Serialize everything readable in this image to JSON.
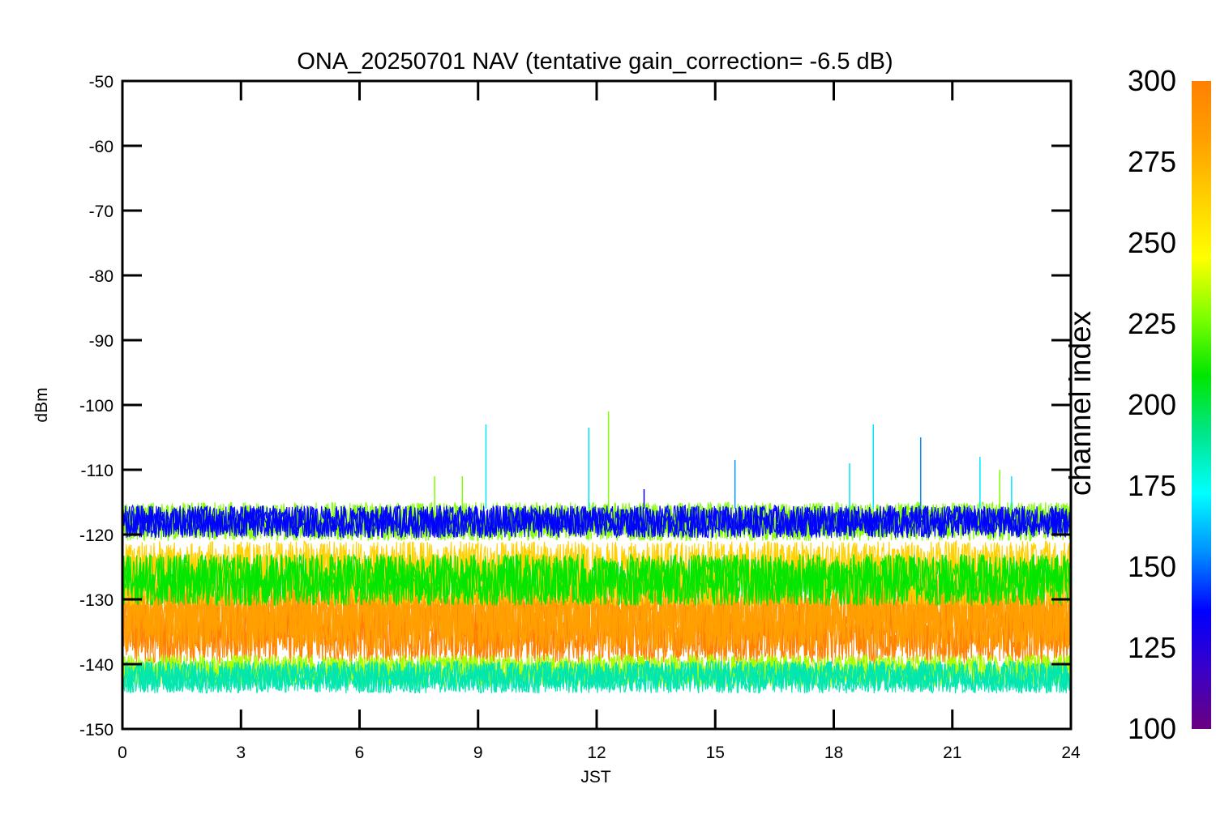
{
  "chart_data": {
    "type": "line",
    "title": "ONA_20250701 NAV (tentative gain_correction= -6.5 dB)",
    "xlabel": "JST",
    "ylabel": "dBm",
    "xlim": [
      0,
      24
    ],
    "ylim": [
      -150,
      -50
    ],
    "x_ticks": [
      "0",
      "3",
      "6",
      "9",
      "12",
      "15",
      "18",
      "21",
      "24"
    ],
    "y_ticks": [
      "-50",
      "-60",
      "-70",
      "-80",
      "-90",
      "-100",
      "-110",
      "-120",
      "-130",
      "-140",
      "-150"
    ],
    "grid": false,
    "colorbar": {
      "label": "channel index",
      "range": [
        100,
        300
      ],
      "tick_labels": [
        "300",
        "275",
        "250",
        "225",
        "200",
        "175",
        "150",
        "125",
        "100"
      ],
      "colors": [
        "#6a0080",
        "#3a00c8",
        "#0000ff",
        "#0090ff",
        "#00ffff",
        "#00e68c",
        "#00e600",
        "#80ff00",
        "#ffff00",
        "#ffd000",
        "#ffa000",
        "#ff8000"
      ]
    },
    "bands": [
      {
        "channel": 300,
        "color": "#ff8000",
        "center_dbm": -134.5,
        "spread_dbm": 5.5
      },
      {
        "channel": 285,
        "color": "#ffa000",
        "center_dbm": -132,
        "spread_dbm": 6
      },
      {
        "channel": 270,
        "color": "#ffd000",
        "center_dbm": -126,
        "spread_dbm": 5
      },
      {
        "channel": 235,
        "color": "#00e600",
        "center_dbm": -127,
        "spread_dbm": 4
      },
      {
        "channel": 255,
        "color": "#80ff00",
        "center_dbm": -118,
        "spread_dbm": 3
      },
      {
        "channel": 150,
        "color": "#0000ff",
        "center_dbm": -118,
        "spread_dbm": 2.5
      },
      {
        "channel": 260,
        "color": "#a8ff00",
        "center_dbm": -141,
        "spread_dbm": 2.5
      },
      {
        "channel": 190,
        "color": "#00e6b0",
        "center_dbm": -142,
        "spread_dbm": 2.5
      }
    ],
    "spikes": [
      {
        "x": 7.9,
        "dbm": -111,
        "color": "#80ff00"
      },
      {
        "x": 8.6,
        "dbm": -111,
        "color": "#80ff00"
      },
      {
        "x": 9.2,
        "dbm": -103,
        "color": "#00e6ff"
      },
      {
        "x": 11.8,
        "dbm": -103.5,
        "color": "#00e6ff"
      },
      {
        "x": 12.3,
        "dbm": -101,
        "color": "#80ff00"
      },
      {
        "x": 13.2,
        "dbm": -113,
        "color": "#0000ff"
      },
      {
        "x": 15.5,
        "dbm": -108.5,
        "color": "#0090ff"
      },
      {
        "x": 18.4,
        "dbm": -109,
        "color": "#00e6ff"
      },
      {
        "x": 19.0,
        "dbm": -103,
        "color": "#00e6ff"
      },
      {
        "x": 20.2,
        "dbm": -105,
        "color": "#0090ff"
      },
      {
        "x": 21.7,
        "dbm": -108,
        "color": "#00e6ff"
      },
      {
        "x": 22.2,
        "dbm": -110,
        "color": "#80ff00"
      },
      {
        "x": 22.5,
        "dbm": -111,
        "color": "#00e6ff"
      }
    ]
  }
}
